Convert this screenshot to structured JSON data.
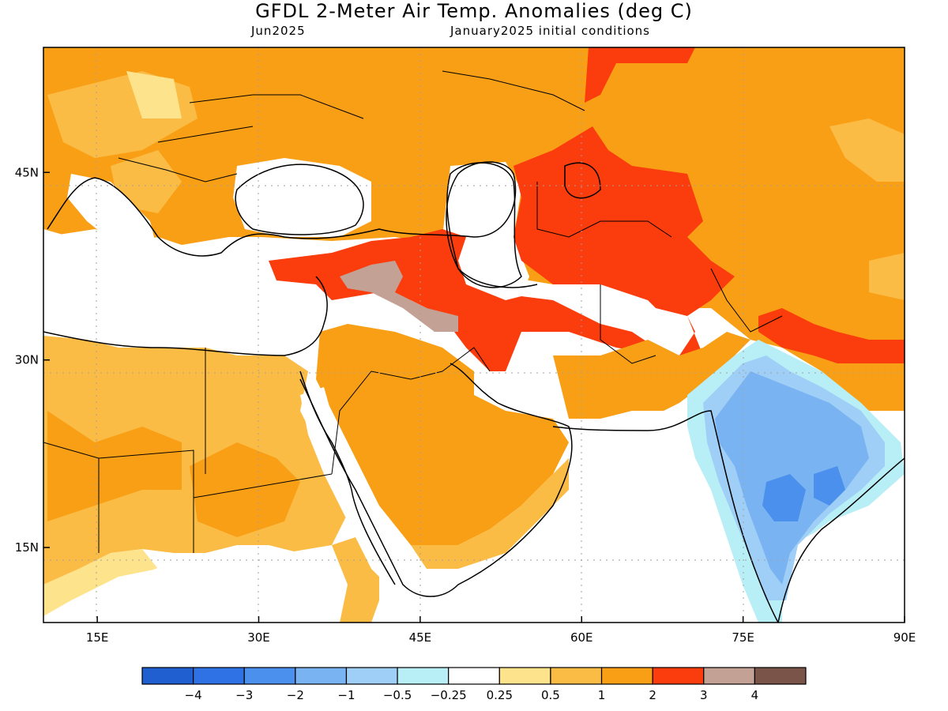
{
  "title": "GFDL 2-Meter Air Temp. Anomalies (deg C)",
  "subtitle_left": "Jun2025",
  "subtitle_right": "January2025 initial conditions",
  "map": {
    "lon_range": [
      10,
      90
    ],
    "lat_range": [
      9,
      55
    ],
    "lat_ticks": [
      {
        "value": 45,
        "label": "45N"
      },
      {
        "value": 30,
        "label": "30N"
      },
      {
        "value": 15,
        "label": "15N"
      }
    ],
    "lon_ticks": [
      {
        "value": 15,
        "label": "15E"
      },
      {
        "value": 30,
        "label": "30E"
      },
      {
        "value": 45,
        "label": "45E"
      },
      {
        "value": 60,
        "label": "60E"
      },
      {
        "value": 75,
        "label": "75E"
      },
      {
        "value": 90,
        "label": "90E"
      }
    ]
  },
  "colorbar": {
    "colors": [
      "#1f5fd0",
      "#2e72e6",
      "#4a90ec",
      "#79b3f2",
      "#9fcef6",
      "#b8eef5",
      "#ffffff",
      "#fde48c",
      "#fbbc46",
      "#f99f16",
      "#fb3c0c",
      "#c3a295",
      "#7a5448"
    ],
    "labels": [
      "−4",
      "−3",
      "−2",
      "−1",
      "−0.5",
      "−0.25",
      "0.25",
      "0.5",
      "1",
      "2",
      "3",
      "4"
    ]
  }
}
